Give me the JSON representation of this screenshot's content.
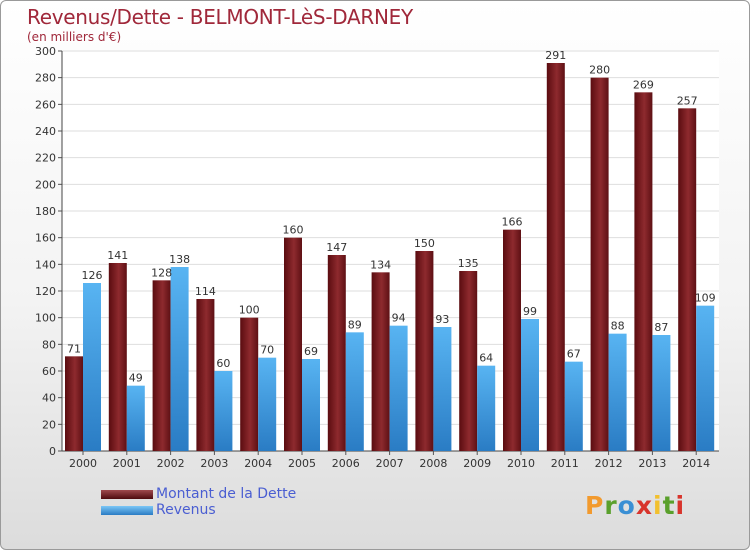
{
  "header": {
    "title": "Revenus/Dette - BELMONT-LèS-DARNEY",
    "subtitle": "(en milliers d'€)"
  },
  "legend": {
    "dette_label": "Montant de la Dette",
    "revenus_label": "Revenus"
  },
  "logo": {
    "letters": [
      "P",
      "r",
      "o",
      "x",
      "i",
      "t",
      "i"
    ],
    "colors": [
      "#f29a2e",
      "#5aa02c",
      "#3a8fd4",
      "#d8342c",
      "#f2c02e",
      "#5aa02c",
      "#d8342c"
    ]
  },
  "colors": {
    "dette": "#7a1a1e",
    "revenus": "#3d9be4",
    "title": "#a0283a",
    "legend_text": "#4a5ed2"
  },
  "chart_data": {
    "type": "bar",
    "title": "Revenus/Dette - BELMONT-LèS-DARNEY",
    "subtitle": "(en milliers d'€)",
    "categories": [
      "2000",
      "2001",
      "2002",
      "2003",
      "2004",
      "2005",
      "2006",
      "2007",
      "2008",
      "2009",
      "2010",
      "2011",
      "2012",
      "2013",
      "2014"
    ],
    "series": [
      {
        "name": "Montant de la Dette",
        "values": [
          71,
          141,
          128,
          114,
          100,
          160,
          147,
          134,
          150,
          135,
          166,
          291,
          280,
          269,
          257
        ]
      },
      {
        "name": "Revenus",
        "values": [
          126,
          49,
          138,
          60,
          70,
          69,
          89,
          94,
          93,
          64,
          99,
          67,
          88,
          87,
          109
        ]
      }
    ],
    "ylim": [
      0,
      300
    ],
    "yticks": [
      0,
      20,
      40,
      60,
      80,
      100,
      120,
      140,
      160,
      180,
      200,
      220,
      240,
      260,
      280,
      300
    ],
    "grid": true,
    "legend_position": "bottom-left"
  }
}
